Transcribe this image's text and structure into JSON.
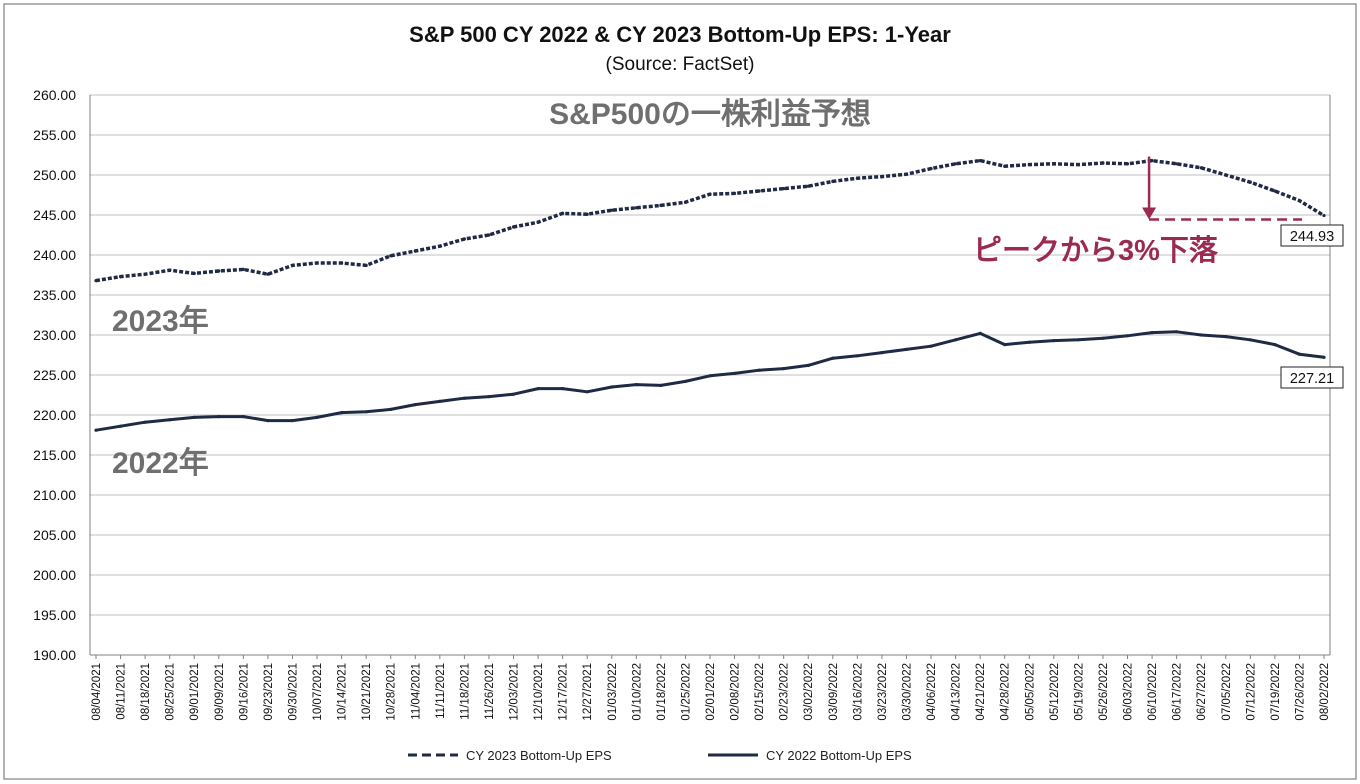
{
  "chart_data": {
    "type": "line",
    "title": "S&P 500 CY 2022 & CY 2023 Bottom-Up EPS: 1-Year",
    "subtitle": "(Source: FactSet)",
    "xlabel": "",
    "ylabel": "",
    "ylim": [
      190,
      260
    ],
    "grid": true,
    "legend_position": "bottom",
    "y_ticks": [
      "190.00",
      "195.00",
      "200.00",
      "205.00",
      "210.00",
      "215.00",
      "220.00",
      "225.00",
      "230.00",
      "235.00",
      "240.00",
      "245.00",
      "250.00",
      "255.00",
      "260.00"
    ],
    "x_ticks": [
      "08/04/2021",
      "08/11/2021",
      "08/18/2021",
      "08/25/2021",
      "09/01/2021",
      "09/09/2021",
      "09/16/2021",
      "09/23/2021",
      "09/30/2021",
      "10/07/2021",
      "10/14/2021",
      "10/21/2021",
      "10/28/2021",
      "11/04/2021",
      "11/11/2021",
      "11/18/2021",
      "11/26/2021",
      "12/03/2021",
      "12/10/2021",
      "12/17/2021",
      "12/27/2021",
      "01/03/2022",
      "01/10/2022",
      "01/18/2022",
      "01/25/2022",
      "02/01/2022",
      "02/08/2022",
      "02/15/2022",
      "02/23/2022",
      "03/02/2022",
      "03/09/2022",
      "03/16/2022",
      "03/23/2022",
      "03/30/2022",
      "04/06/2022",
      "04/13/2022",
      "04/21/2022",
      "04/28/2022",
      "05/05/2022",
      "05/12/2022",
      "05/19/2022",
      "05/26/2022",
      "06/03/2022",
      "06/10/2022",
      "06/17/2022",
      "06/27/2022",
      "07/05/2022",
      "07/12/2022",
      "07/19/2022",
      "07/26/2022",
      "08/02/2022"
    ],
    "series": [
      {
        "name": "CY 2023 Bottom-Up EPS",
        "style": "dashed",
        "color": "#1f2a44",
        "values": [
          236.8,
          237.3,
          237.6,
          238.1,
          237.7,
          238.0,
          238.2,
          237.6,
          238.7,
          239.0,
          239.0,
          238.7,
          239.9,
          240.5,
          241.1,
          242.0,
          242.5,
          243.5,
          244.1,
          245.2,
          245.1,
          245.6,
          245.9,
          246.2,
          246.6,
          247.6,
          247.7,
          248.0,
          248.3,
          248.6,
          249.2,
          249.6,
          249.8,
          250.1,
          250.8,
          251.4,
          251.8,
          251.1,
          251.3,
          251.4,
          251.3,
          251.5,
          251.4,
          251.8,
          251.4,
          250.9,
          250.0,
          249.1,
          248.0,
          246.8,
          244.93
        ]
      },
      {
        "name": "CY 2022 Bottom-Up EPS",
        "style": "solid",
        "color": "#1f2a44",
        "values": [
          218.1,
          218.6,
          219.1,
          219.4,
          219.7,
          219.8,
          219.8,
          219.3,
          219.3,
          219.7,
          220.3,
          220.4,
          220.7,
          221.3,
          221.7,
          222.1,
          222.3,
          222.6,
          223.3,
          223.3,
          222.9,
          223.5,
          223.8,
          223.7,
          224.2,
          224.9,
          225.2,
          225.6,
          225.8,
          226.2,
          227.1,
          227.4,
          227.8,
          228.2,
          228.6,
          229.4,
          230.2,
          228.8,
          229.1,
          229.3,
          229.4,
          229.6,
          229.9,
          230.3,
          230.4,
          230.0,
          229.8,
          229.4,
          228.8,
          227.6,
          227.21
        ]
      }
    ],
    "end_labels": [
      "244.93",
      "227.21"
    ],
    "annotations": {
      "chart_heading": "S&P500の一株利益予想",
      "label_2023": "2023年",
      "label_2022": "2022年",
      "drop_note": "ピークから3%下落",
      "drop_color": "#9b2a52"
    }
  }
}
